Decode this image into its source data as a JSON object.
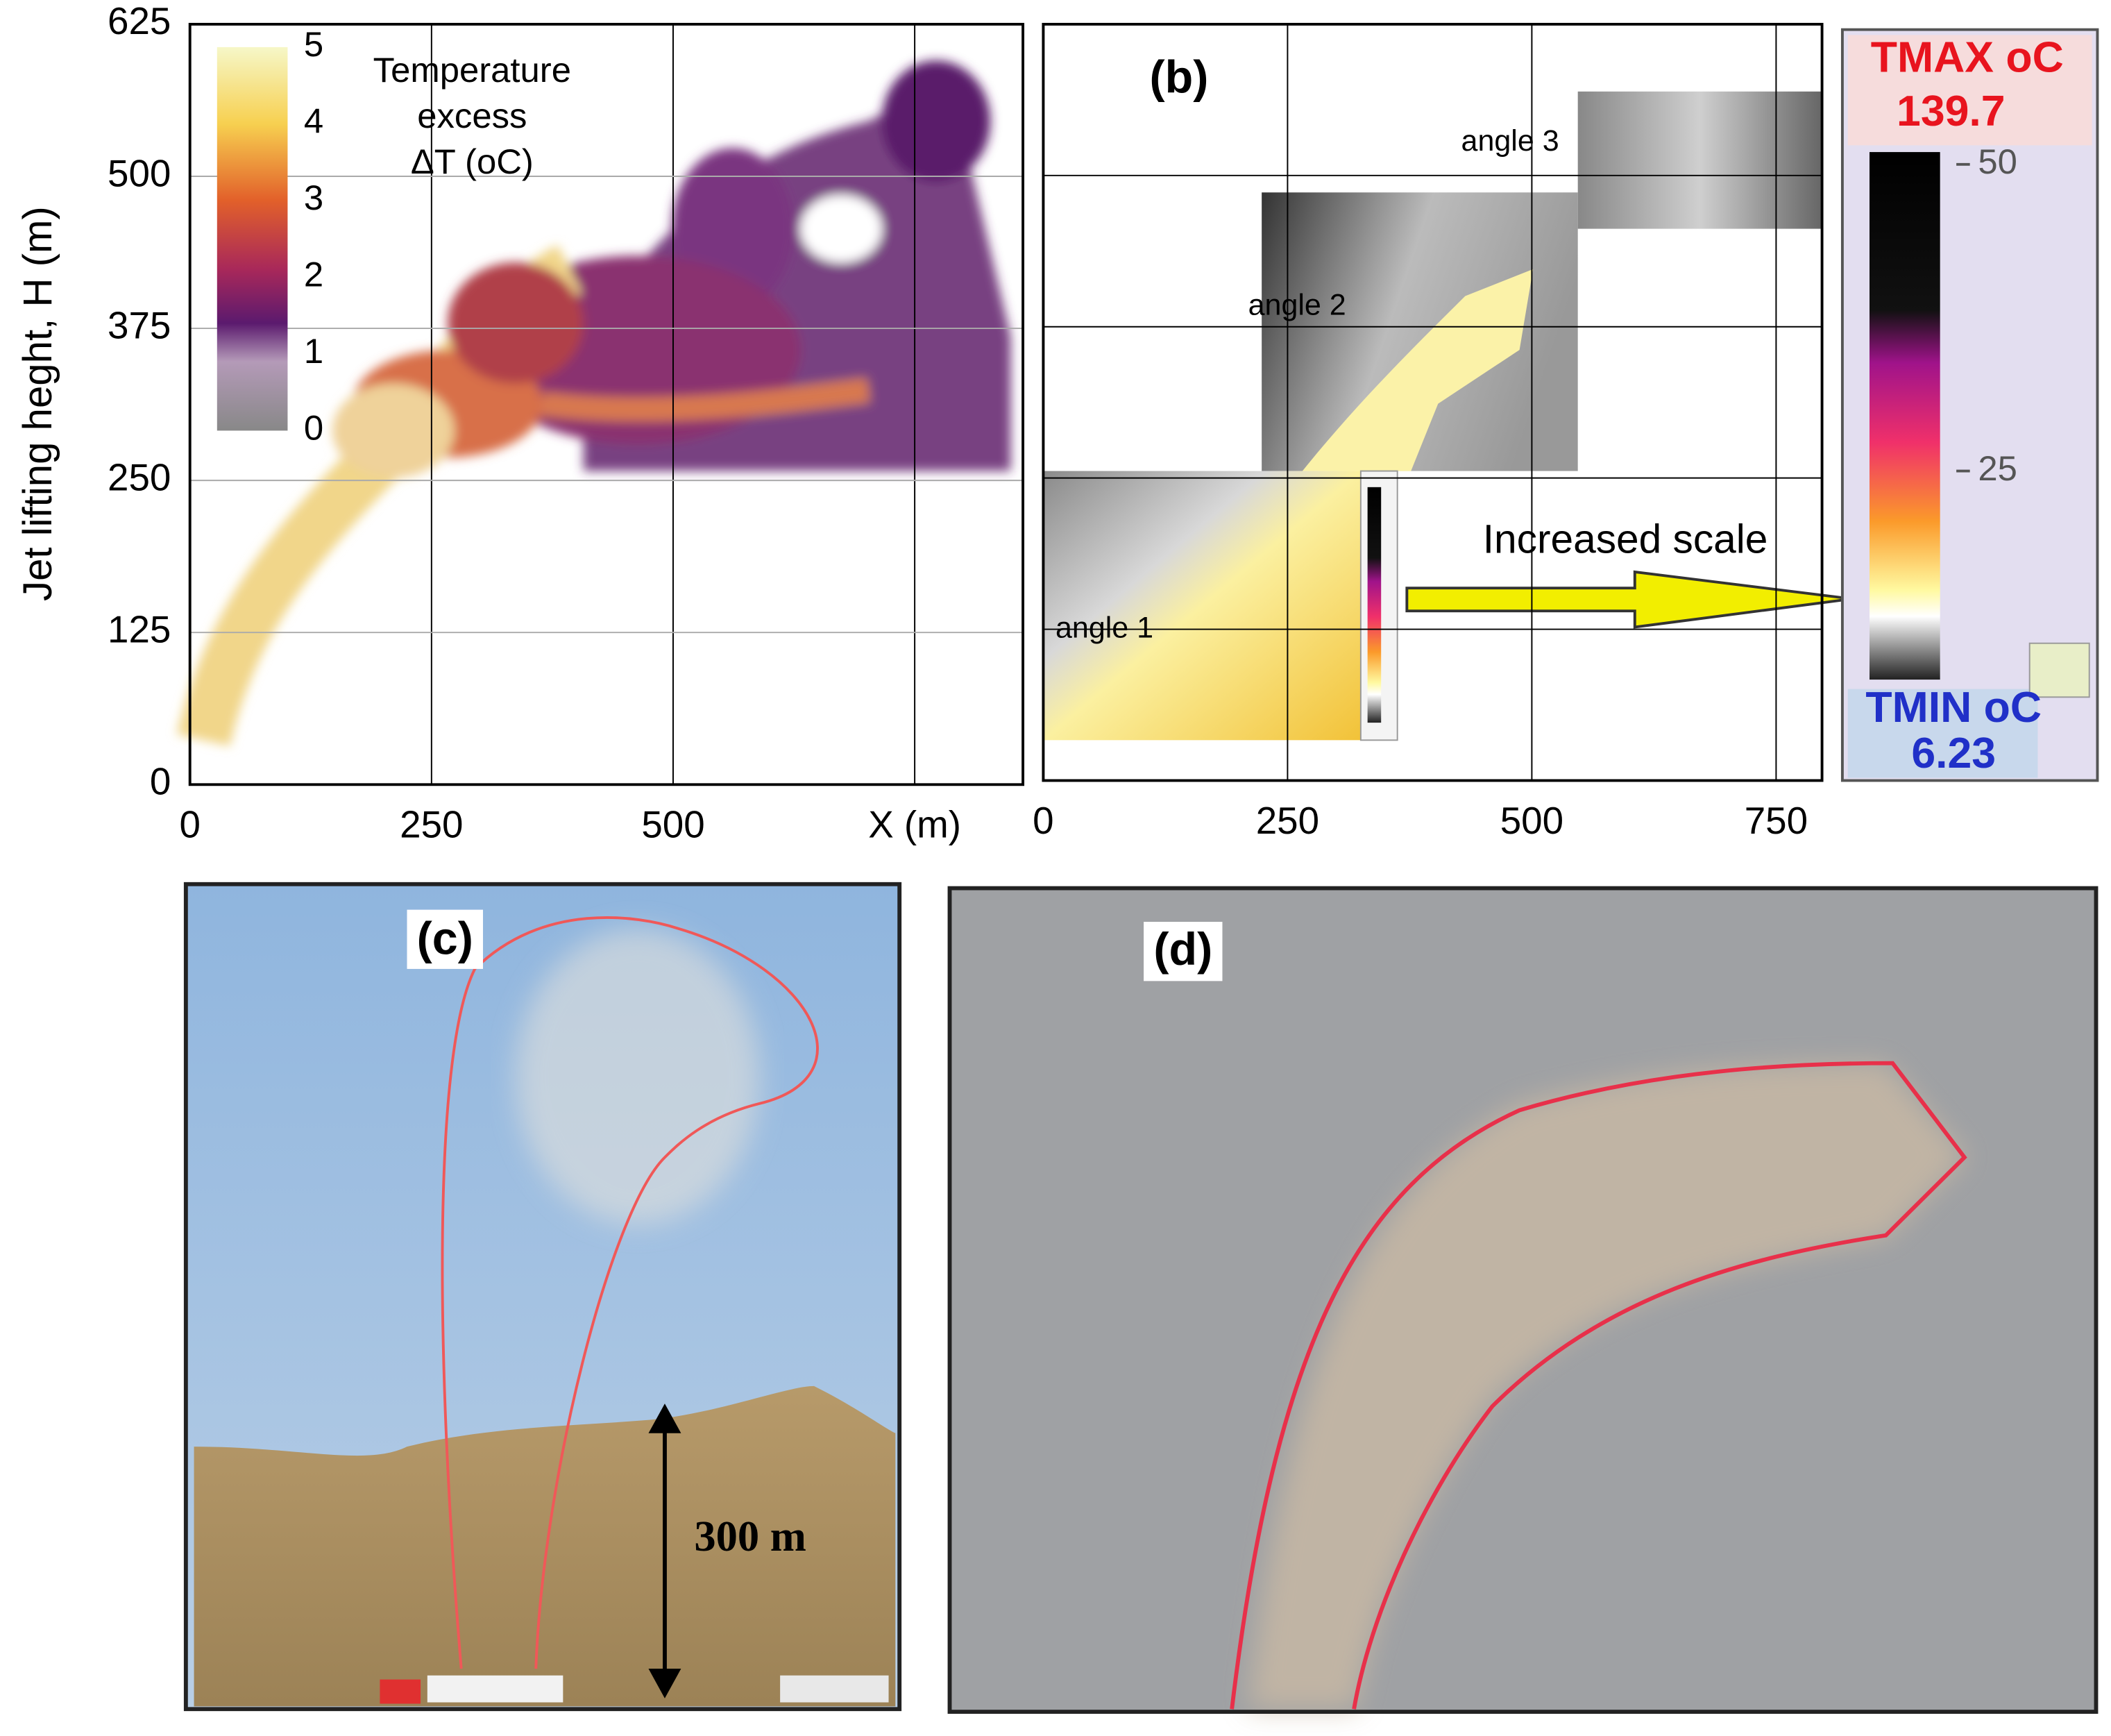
{
  "chart_data": [
    {
      "type": "image",
      "ylabel": "Jet lifting heght, H (m)",
      "xlim": [
        0,
        862
      ],
      "ylim": [
        0,
        625
      ],
      "xticks": [
        0,
        250,
        500,
        {
          "value": 750,
          "label": "X (m)"
        }
      ],
      "yticks": [
        0,
        125,
        250,
        375,
        500,
        625
      ],
      "grid": true,
      "colorbar": {
        "title": [
          "Temperature",
          "excess",
          "ΔT (oC)"
        ],
        "clim": [
          0,
          5
        ],
        "ticks": [
          0,
          1,
          2,
          3,
          4,
          5
        ]
      }
    },
    {
      "type": "image",
      "label": "(b)",
      "xlim": [
        0,
        797
      ],
      "ylim": [
        0,
        625
      ],
      "xticks": [
        0,
        250,
        500,
        750
      ],
      "yticks": [
        125,
        250,
        375,
        500
      ],
      "ytick_labels": false,
      "grid": true,
      "annotations": [
        "angle 1",
        "angle 2",
        "angle 3",
        "Increased scale"
      ],
      "colorbar": {
        "max_label": "TMAX oC",
        "max": 139.7,
        "min_label": "TMIN oC",
        "min": 6.23,
        "clim": [
          8,
          51
        ],
        "ticks": [
          50,
          25
        ]
      }
    }
  ],
  "photos": [
    {
      "label": "(c)",
      "scale_label": "300 m"
    },
    {
      "label": "(d)"
    }
  ]
}
